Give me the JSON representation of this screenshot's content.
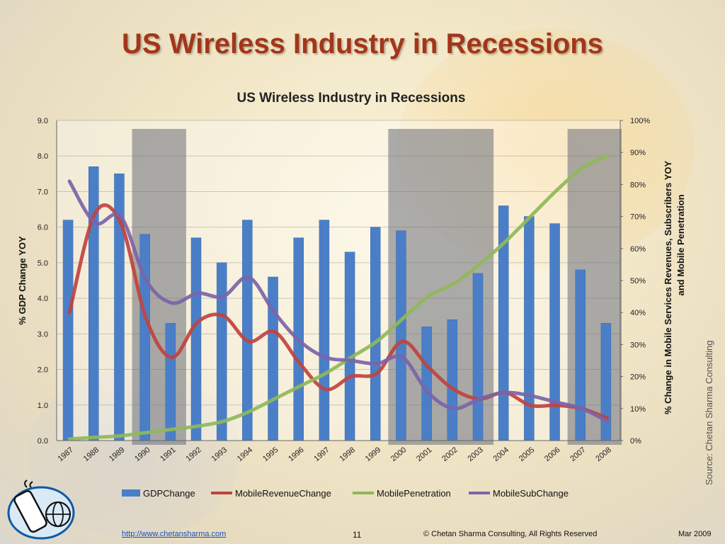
{
  "slide": {
    "title": "US Wireless Industry in Recessions",
    "source": "Source: Chetan Sharma Consulting",
    "footer": {
      "link": "http://www.chetansharma.com",
      "page": "11",
      "copyright": "© Chetan Sharma Consulting, All Rights Reserved",
      "date": "Mar 2009"
    }
  },
  "chart_data": {
    "type": "bar",
    "title": "US Wireless Industry in Recessions",
    "categories": [
      "1987",
      "1988",
      "1989",
      "1990",
      "1991",
      "1992",
      "1993",
      "1994",
      "1995",
      "1996",
      "1997",
      "1998",
      "1999",
      "2000",
      "2001",
      "2002",
      "2003",
      "2004",
      "2005",
      "2006",
      "2007",
      "2008"
    ],
    "ylabel_left": "% GDP Change YOY",
    "ylabel_right": "% Change in Mobile Services Revenues, Subscribers YOY and Mobile Penetration",
    "ylim_left": [
      0,
      9
    ],
    "ylim_right": [
      0,
      100
    ],
    "left_ticks": [
      "0.0",
      "1.0",
      "2.0",
      "3.0",
      "4.0",
      "5.0",
      "6.0",
      "7.0",
      "8.0",
      "9.0"
    ],
    "right_ticks": [
      "0%",
      "10%",
      "20%",
      "30%",
      "40%",
      "50%",
      "60%",
      "70%",
      "80%",
      "90%",
      "100%"
    ],
    "recession_bands": [
      {
        "from": "1990",
        "to": "1991"
      },
      {
        "from": "2000",
        "to": "2003"
      },
      {
        "from": "2007",
        "to": "2008"
      }
    ],
    "legend_position": "bottom",
    "series": [
      {
        "name": "GDPChange",
        "kind": "bar",
        "axis": "left",
        "color": "#4a7fc8",
        "values": [
          6.2,
          7.7,
          7.5,
          5.8,
          3.3,
          5.7,
          5.0,
          6.2,
          4.6,
          5.7,
          6.2,
          5.3,
          6.0,
          5.9,
          3.2,
          3.4,
          4.7,
          6.6,
          6.3,
          6.1,
          4.8,
          3.3
        ]
      },
      {
        "name": "MobileRevenueChange",
        "kind": "line",
        "axis": "right",
        "color": "#c0433f",
        "values": [
          40,
          71,
          68,
          38,
          26,
          37,
          39,
          31,
          34,
          24,
          16,
          20,
          21,
          31,
          23,
          16,
          13,
          15,
          11,
          11,
          10,
          7
        ]
      },
      {
        "name": "MobilePenetration",
        "kind": "line",
        "axis": "right",
        "color": "#8fb85a",
        "values": [
          0.5,
          1,
          1.5,
          2.5,
          3.5,
          4.5,
          6,
          9,
          13,
          17,
          21,
          26,
          31,
          38,
          45,
          49,
          55,
          62,
          70,
          78,
          85,
          89
        ]
      },
      {
        "name": "MobileSubChange",
        "kind": "line",
        "axis": "right",
        "color": "#7b64a8",
        "values": [
          81,
          68,
          70,
          50,
          43,
          46,
          45,
          51,
          40,
          31,
          26,
          25,
          24,
          26,
          15,
          10,
          13,
          15,
          14,
          12,
          10,
          6
        ]
      }
    ]
  }
}
